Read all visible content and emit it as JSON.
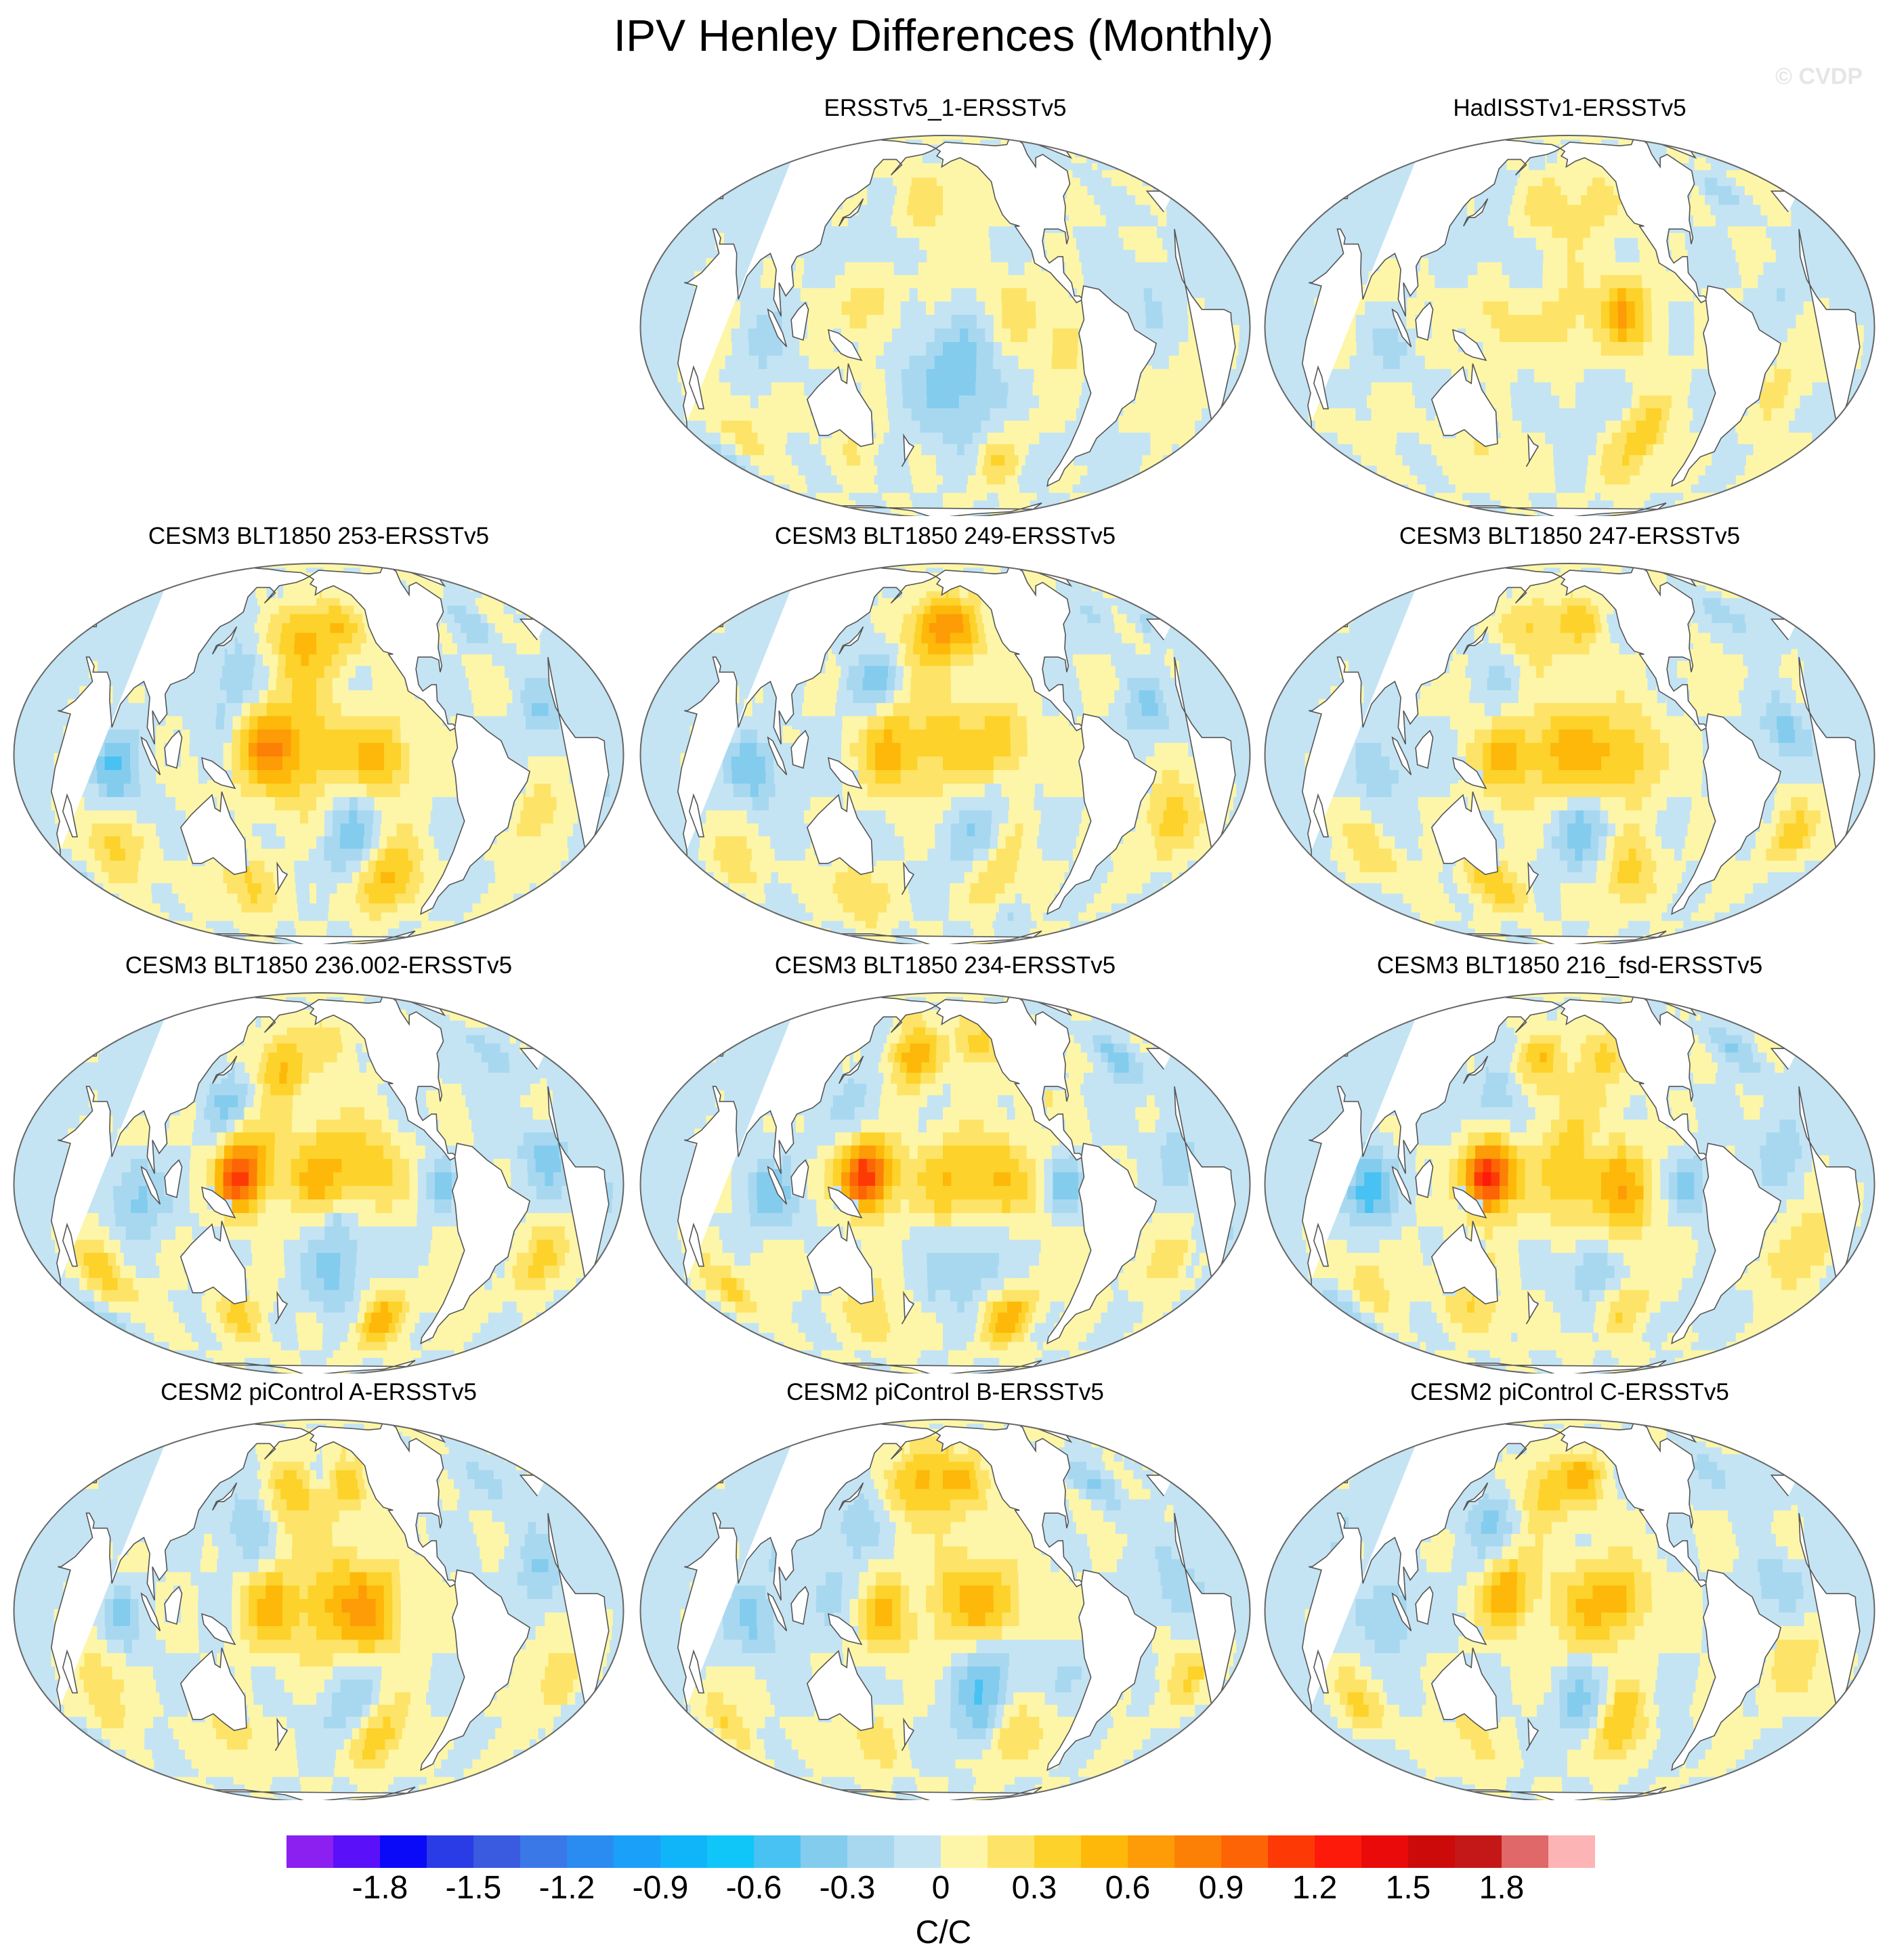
{
  "title": "IPV Henley Differences (Monthly)",
  "watermark": "© CVDP",
  "chart_data": {
    "type": "heatmap",
    "map_type": "global filled-contour difference maps (Robinson-like projection)",
    "variable": "IPV Henley pattern difference",
    "units": "C/C",
    "panels": [
      {
        "title": "ERSSTv5_1-ERSSTv5",
        "row": 0,
        "col": 1
      },
      {
        "title": "HadISSTv1-ERSSTv5",
        "row": 0,
        "col": 2
      },
      {
        "title": "CESM3 BLT1850 253-ERSSTv5",
        "row": 1,
        "col": 0
      },
      {
        "title": "CESM3 BLT1850 249-ERSSTv5",
        "row": 1,
        "col": 1
      },
      {
        "title": "CESM3 BLT1850 247-ERSSTv5",
        "row": 1,
        "col": 2
      },
      {
        "title": "CESM3 BLT1850 236.002-ERSSTv5",
        "row": 2,
        "col": 0
      },
      {
        "title": "CESM3 BLT1850 234-ERSSTv5",
        "row": 2,
        "col": 1
      },
      {
        "title": "CESM3 BLT1850 216_fsd-ERSSTv5",
        "row": 2,
        "col": 2
      },
      {
        "title": "CESM2 piControl A-ERSSTv5",
        "row": 3,
        "col": 0
      },
      {
        "title": "CESM2 piControl B-ERSSTv5",
        "row": 3,
        "col": 1
      },
      {
        "title": "CESM2 piControl C-ERSSTv5",
        "row": 3,
        "col": 2
      }
    ],
    "colorbar": {
      "label_values": [
        "-1.8",
        "-1.5",
        "-1.2",
        "-0.9",
        "-0.6",
        "-0.3",
        "0",
        "0.3",
        "0.6",
        "0.9",
        "1.2",
        "1.5",
        "1.8"
      ],
      "contour_levels": [
        -1.95,
        -1.8,
        -1.65,
        -1.5,
        -1.35,
        -1.2,
        -1.05,
        -0.9,
        -0.75,
        -0.6,
        -0.45,
        -0.3,
        -0.15,
        0,
        0.15,
        0.3,
        0.45,
        0.6,
        0.75,
        0.9,
        1.05,
        1.2,
        1.35,
        1.5,
        1.65,
        1.8,
        1.95
      ],
      "colors": [
        "#8b20f0",
        "#5a10f8",
        "#0a0af8",
        "#2a3ce6",
        "#3a5ae0",
        "#3a78e8",
        "#2a8cf0",
        "#1aa0f8",
        "#10b4f8",
        "#10c6f8",
        "#48c2f2",
        "#84ccee",
        "#a8d8f0",
        "#c4e4f4",
        "#fdf6a8",
        "#fde468",
        "#fdd22a",
        "#fdb80a",
        "#fd9c06",
        "#fd8006",
        "#fd6406",
        "#fd3a06",
        "#fd1a0a",
        "#ea0a0a",
        "#cc0a0a",
        "#c41818",
        "#e06868",
        "#fcb4b4"
      ]
    }
  }
}
